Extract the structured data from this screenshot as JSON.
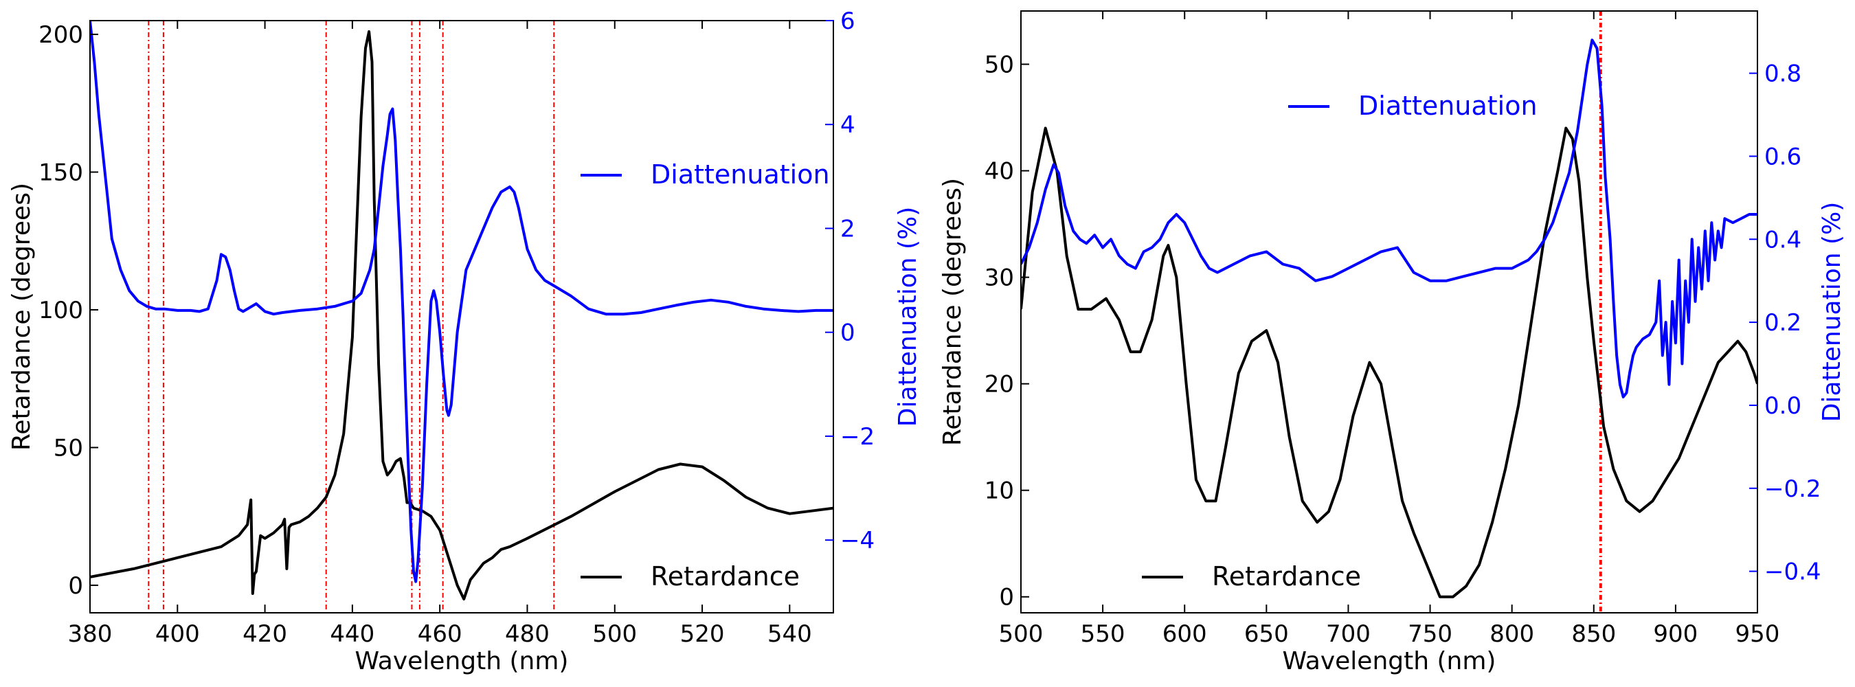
{
  "chart_data": [
    {
      "type": "line",
      "xlabel": "Wavelength (nm)",
      "ylabel": "Retardance (degrees)",
      "y2label": "Diattenuation (%)",
      "xlim": [
        380,
        550
      ],
      "ylim": [
        -10,
        205
      ],
      "y2lim": [
        -5.4,
        6
      ],
      "xticks": [
        380,
        400,
        420,
        440,
        460,
        480,
        500,
        520,
        540
      ],
      "yticks": [
        0,
        50,
        100,
        150,
        200
      ],
      "y2ticks": [
        -4,
        -2,
        0,
        2,
        4,
        6
      ],
      "y2ticklabels": [
        "−4",
        "−2",
        "0",
        "2",
        "4",
        "6"
      ],
      "legend": [
        {
          "label": "Diattenuation",
          "color": "#0000ff",
          "position": "upper-right"
        },
        {
          "label": "Retardance",
          "color": "#000000",
          "position": "lower-right"
        }
      ],
      "vlines": [
        393.4,
        396.8,
        434.0,
        453.6,
        455.4,
        460.7,
        486.1
      ],
      "series": [
        {
          "name": "Retardance",
          "axis": "left",
          "color": "#000000",
          "x": [
            380,
            390,
            400,
            410,
            414,
            416,
            416.8,
            417.2,
            417.6,
            418,
            419,
            420,
            422,
            424,
            424.5,
            425,
            425.5,
            426,
            428,
            430,
            432,
            434,
            436,
            438,
            440,
            441,
            442,
            443,
            443.8,
            444.5,
            445,
            446,
            447,
            448,
            449,
            450,
            451,
            451.8,
            452.5,
            453.2,
            454,
            456,
            458,
            460,
            462,
            464,
            465.5,
            467,
            468.5,
            470,
            472,
            474,
            476,
            480,
            490,
            500,
            510,
            515,
            520,
            525,
            530,
            535,
            540,
            545,
            550
          ],
          "y": [
            3,
            6,
            10,
            14,
            18,
            22,
            31,
            -3,
            4,
            5,
            18,
            17,
            19,
            22,
            24,
            6,
            21,
            22,
            23,
            25,
            28,
            32,
            40,
            55,
            90,
            130,
            170,
            195,
            201,
            190,
            140,
            80,
            45,
            40,
            42,
            45,
            46,
            39,
            30,
            30,
            28,
            27,
            25,
            20,
            10,
            0,
            -5,
            2,
            5,
            8,
            10,
            13,
            14,
            17,
            25,
            34,
            42,
            44,
            43,
            38,
            32,
            28,
            26,
            27,
            28
          ]
        },
        {
          "name": "Diattenuation",
          "axis": "right",
          "color": "#0000ff",
          "x": [
            380,
            381,
            382,
            383,
            384,
            385,
            387,
            389,
            391,
            393,
            395,
            397,
            400,
            403,
            405,
            407,
            409,
            410,
            411,
            412,
            413,
            414,
            415,
            416,
            418,
            420,
            422,
            424,
            428,
            432,
            436,
            438,
            440,
            442,
            444,
            445,
            446,
            447,
            448,
            448.6,
            449.2,
            449.8,
            450.4,
            451,
            451.6,
            452.2,
            452.8,
            453.4,
            454,
            454.5,
            455,
            456,
            457,
            458,
            458.6,
            459.2,
            460,
            460.8,
            461.6,
            462,
            462.6,
            463.4,
            464,
            465,
            466,
            468,
            470,
            472,
            474,
            476,
            477,
            478,
            479,
            480,
            482,
            484,
            486,
            490,
            494,
            498,
            502,
            506,
            510,
            514,
            518,
            522,
            526,
            530,
            534,
            538,
            542,
            546,
            550
          ],
          "y": [
            6,
            5.2,
            4.2,
            3.4,
            2.6,
            1.8,
            1.2,
            0.8,
            0.6,
            0.5,
            0.45,
            0.45,
            0.42,
            0.42,
            0.4,
            0.45,
            1.0,
            1.5,
            1.45,
            1.2,
            0.8,
            0.45,
            0.4,
            0.45,
            0.55,
            0.4,
            0.35,
            0.38,
            0.42,
            0.45,
            0.5,
            0.55,
            0.6,
            0.75,
            1.2,
            1.6,
            2.4,
            3.2,
            3.8,
            4.2,
            4.3,
            3.7,
            2.6,
            1.6,
            0.3,
            -1.2,
            -2.6,
            -3.8,
            -4.6,
            -4.8,
            -4.4,
            -3.0,
            -1.0,
            0.6,
            0.8,
            0.6,
            0.0,
            -0.8,
            -1.5,
            -1.6,
            -1.4,
            -0.6,
            0.0,
            0.6,
            1.2,
            1.6,
            2.0,
            2.4,
            2.7,
            2.8,
            2.7,
            2.4,
            2.0,
            1.6,
            1.2,
            1.0,
            0.9,
            0.7,
            0.45,
            0.35,
            0.35,
            0.38,
            0.45,
            0.52,
            0.58,
            0.62,
            0.58,
            0.5,
            0.45,
            0.42,
            0.4,
            0.42,
            0.42
          ]
        }
      ]
    },
    {
      "type": "line",
      "xlabel": "Wavelength (nm)",
      "ylabel": "Retardance (degrees)",
      "y2label": "Diattenuation (%)",
      "xlim": [
        500,
        950
      ],
      "ylim": [
        -1.5,
        55
      ],
      "y2lim": [
        -0.5,
        0.95
      ],
      "xticks": [
        500,
        550,
        600,
        650,
        700,
        750,
        800,
        850,
        900,
        950
      ],
      "yticks": [
        0,
        10,
        20,
        30,
        40,
        50
      ],
      "y2ticks": [
        -0.4,
        -0.2,
        0.0,
        0.2,
        0.4,
        0.6,
        0.8
      ],
      "y2ticklabels": [
        "−0.4",
        "−0.2",
        "0.0",
        "0.2",
        "0.4",
        "0.6",
        "0.8"
      ],
      "legend": [
        {
          "label": "Diattenuation",
          "color": "#0000ff",
          "position": "upper-center"
        },
        {
          "label": "Retardance",
          "color": "#000000",
          "position": "lower-left"
        }
      ],
      "vlines": [
        854.2
      ],
      "series": [
        {
          "name": "Retardance",
          "axis": "left",
          "color": "#000000",
          "x": [
            500,
            507,
            515,
            522,
            528,
            535,
            543,
            552,
            560,
            567,
            573,
            580,
            587,
            590,
            595,
            601,
            607,
            613,
            619,
            625,
            633,
            641,
            650,
            657,
            664,
            672,
            681,
            688,
            695,
            703,
            713,
            720,
            727,
            733,
            740,
            748,
            756,
            764,
            772,
            780,
            788,
            796,
            804,
            812,
            820,
            828,
            833,
            837,
            841,
            846,
            850,
            856,
            862,
            870,
            878,
            886,
            894,
            902,
            910,
            918,
            926,
            932,
            938,
            943,
            948,
            950
          ],
          "y": [
            27,
            38,
            44,
            40,
            32,
            27,
            27,
            28,
            26,
            23,
            23,
            26,
            32,
            33,
            30,
            20,
            11,
            9,
            9,
            14,
            21,
            24,
            25,
            22,
            15,
            9,
            7,
            8,
            11,
            17,
            22,
            20,
            14,
            9,
            6,
            3,
            0,
            0,
            1,
            3,
            7,
            12,
            18,
            26,
            34,
            40,
            44,
            43,
            39,
            30,
            24,
            16,
            12,
            9,
            8,
            9,
            11,
            13,
            16,
            19,
            22,
            23,
            24,
            23,
            21,
            20
          ]
        },
        {
          "name": "Diattenuation",
          "axis": "right",
          "color": "#0000ff",
          "x": [
            500,
            505,
            510,
            515,
            520,
            523,
            527,
            532,
            536,
            540,
            545,
            550,
            555,
            560,
            565,
            570,
            575,
            580,
            585,
            590,
            595,
            600,
            605,
            610,
            615,
            620,
            630,
            640,
            650,
            660,
            670,
            680,
            690,
            700,
            710,
            720,
            730,
            740,
            750,
            760,
            770,
            780,
            790,
            800,
            810,
            815,
            820,
            825,
            830,
            835,
            840,
            843,
            846,
            849,
            852,
            855,
            857,
            860,
            862,
            864,
            866,
            868,
            870,
            872,
            874,
            876,
            880,
            884,
            888,
            890,
            892,
            894,
            896,
            898,
            900,
            902,
            904,
            906,
            908,
            910,
            912,
            914,
            916,
            918,
            920,
            922,
            924,
            926,
            928,
            930,
            935,
            940,
            945,
            950
          ],
          "y": [
            0.34,
            0.38,
            0.44,
            0.52,
            0.58,
            0.56,
            0.48,
            0.42,
            0.4,
            0.39,
            0.41,
            0.38,
            0.4,
            0.36,
            0.34,
            0.33,
            0.37,
            0.38,
            0.4,
            0.44,
            0.46,
            0.44,
            0.4,
            0.36,
            0.33,
            0.32,
            0.34,
            0.36,
            0.37,
            0.34,
            0.33,
            0.3,
            0.31,
            0.33,
            0.35,
            0.37,
            0.38,
            0.32,
            0.3,
            0.3,
            0.31,
            0.32,
            0.33,
            0.33,
            0.35,
            0.37,
            0.4,
            0.44,
            0.5,
            0.56,
            0.66,
            0.74,
            0.82,
            0.88,
            0.86,
            0.72,
            0.55,
            0.4,
            0.25,
            0.12,
            0.05,
            0.02,
            0.03,
            0.08,
            0.12,
            0.14,
            0.16,
            0.17,
            0.2,
            0.3,
            0.12,
            0.2,
            0.05,
            0.25,
            0.15,
            0.35,
            0.1,
            0.3,
            0.2,
            0.4,
            0.25,
            0.38,
            0.28,
            0.42,
            0.3,
            0.44,
            0.35,
            0.42,
            0.38,
            0.45,
            0.44,
            0.45,
            0.46,
            0.46
          ]
        }
      ]
    }
  ]
}
